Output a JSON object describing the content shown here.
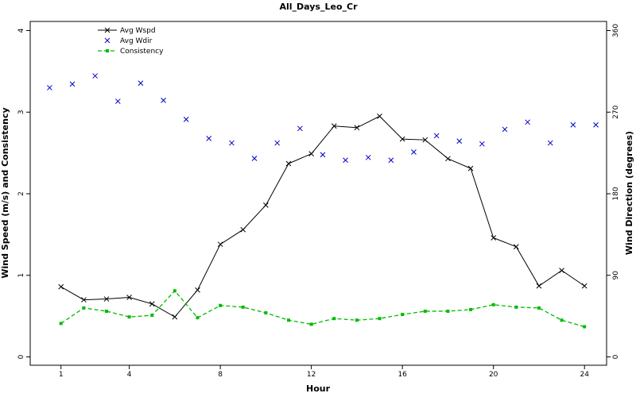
{
  "chart_data": {
    "type": "line",
    "title": "All_Days_Leo_Cr",
    "xlabel": "Hour",
    "ylabel_left": "Wind Speed (m/s) and Consistency",
    "ylabel_right": "Wind Direction (degrees)",
    "xlim": [
      0.5,
      24.5
    ],
    "ylim_left": [
      0,
      4
    ],
    "ylim_right": [
      0,
      360
    ],
    "x_ticks": [
      1,
      4,
      8,
      12,
      16,
      20,
      24
    ],
    "y_ticks_left": [
      0,
      1,
      2,
      3,
      4
    ],
    "y_ticks_right": [
      0,
      90,
      180,
      270,
      360
    ],
    "grid": false,
    "legend_position": "top-left",
    "series": [
      {
        "name": "Avg Wspd",
        "axis": "left",
        "style": "solid-line-x-markers",
        "color": "#000000",
        "x": [
          1,
          2,
          3,
          4,
          5,
          6,
          7,
          8,
          9,
          10,
          11,
          12,
          13,
          14,
          15,
          16,
          17,
          18,
          19,
          20,
          21,
          22,
          23,
          24
        ],
        "values": [
          0.86,
          0.7,
          0.71,
          0.73,
          0.65,
          0.49,
          0.82,
          1.38,
          1.56,
          1.86,
          2.37,
          2.49,
          2.83,
          2.81,
          2.95,
          2.67,
          2.66,
          2.43,
          2.31,
          1.46,
          1.35,
          0.87,
          1.06,
          0.87
        ]
      },
      {
        "name": "Avg Wdir",
        "axis": "right",
        "style": "x-markers",
        "color": "#0000cc",
        "x": [
          0.5,
          1.5,
          2.5,
          3.5,
          4.5,
          5.5,
          6.5,
          7.5,
          8.5,
          9.5,
          10.5,
          11.5,
          12.5,
          13.5,
          14.5,
          15.5,
          16.5,
          17.5,
          18.5,
          19.5,
          20.5,
          21.5,
          22.5,
          23.5,
          24.5
        ],
        "values": [
          297,
          301,
          310,
          282,
          302,
          283,
          262,
          241,
          236,
          219,
          236,
          252,
          223,
          217,
          220,
          217,
          226,
          244,
          238,
          235,
          251,
          259,
          236,
          256,
          256
        ]
      },
      {
        "name": "Consistency",
        "axis": "left",
        "style": "dashed-line-square-markers",
        "color": "#00bb00",
        "x": [
          1,
          2,
          3,
          4,
          5,
          6,
          7,
          8,
          9,
          10,
          11,
          12,
          13,
          14,
          15,
          16,
          17,
          18,
          19,
          20,
          21,
          22,
          23,
          24
        ],
        "values": [
          0.41,
          0.6,
          0.56,
          0.49,
          0.51,
          0.81,
          0.48,
          0.63,
          0.61,
          0.54,
          0.45,
          0.4,
          0.47,
          0.45,
          0.47,
          0.52,
          0.56,
          0.56,
          0.58,
          0.64,
          0.61,
          0.6,
          0.45,
          0.37
        ]
      }
    ]
  }
}
